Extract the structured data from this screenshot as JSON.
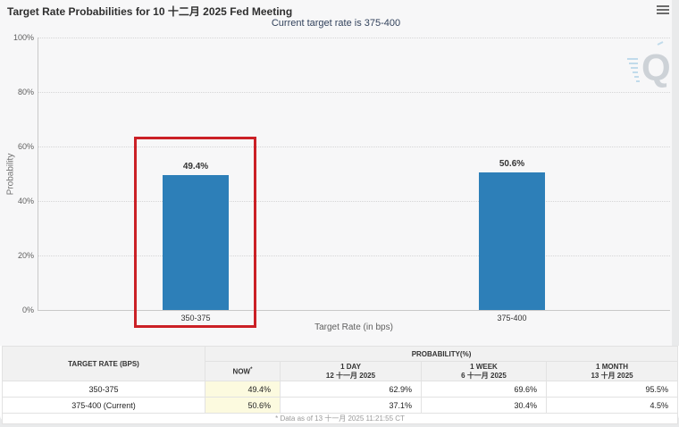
{
  "header": {
    "title": "Target Rate Probabilities for 10 十二月 2025 Fed Meeting",
    "subtitle": "Current target rate is 375-400"
  },
  "chart_data": {
    "type": "bar",
    "title": "Target Rate Probabilities for 10 十二月 2025 Fed Meeting",
    "subtitle": "Current target rate is 375-400",
    "categories": [
      "350-375",
      "375-400"
    ],
    "values": [
      49.4,
      50.6
    ],
    "bar_labels": [
      "49.4%",
      "50.6%"
    ],
    "xlabel": "Target Rate (in bps)",
    "ylabel": "Probability",
    "ylim": [
      0,
      100
    ],
    "ytick_labels": [
      "0%",
      "20%",
      "40%",
      "60%",
      "80%",
      "100%"
    ],
    "grid": "horizontal-dotted",
    "legend": "none",
    "bar_color": "#2d7fb8",
    "annotation": {
      "type": "highlight-box",
      "target_category": "350-375",
      "color": "#cb2026"
    },
    "watermark_letter": "Q"
  },
  "table": {
    "target_rate_header": "TARGET RATE (BPS)",
    "probability_header": "PROBABILITY(%)",
    "now_label": "NOW",
    "now_sup": "*",
    "col_1day_label": "1 DAY",
    "col_1day_date": "12 十一月 2025",
    "col_1week_label": "1 WEEK",
    "col_1week_date": "6 十一月 2025",
    "col_1month_label": "1 MONTH",
    "col_1month_date": "13 十月 2025",
    "rows": [
      {
        "cells": [
          "350-375",
          "49.4%",
          "62.9%",
          "69.6%",
          "95.5%"
        ]
      },
      {
        "cells": [
          "375-400 (Current)",
          "50.6%",
          "37.1%",
          "30.4%",
          "4.5%"
        ]
      }
    ],
    "footnote": "* Data as of 13 十一月 2025 11:21:55 CT"
  }
}
